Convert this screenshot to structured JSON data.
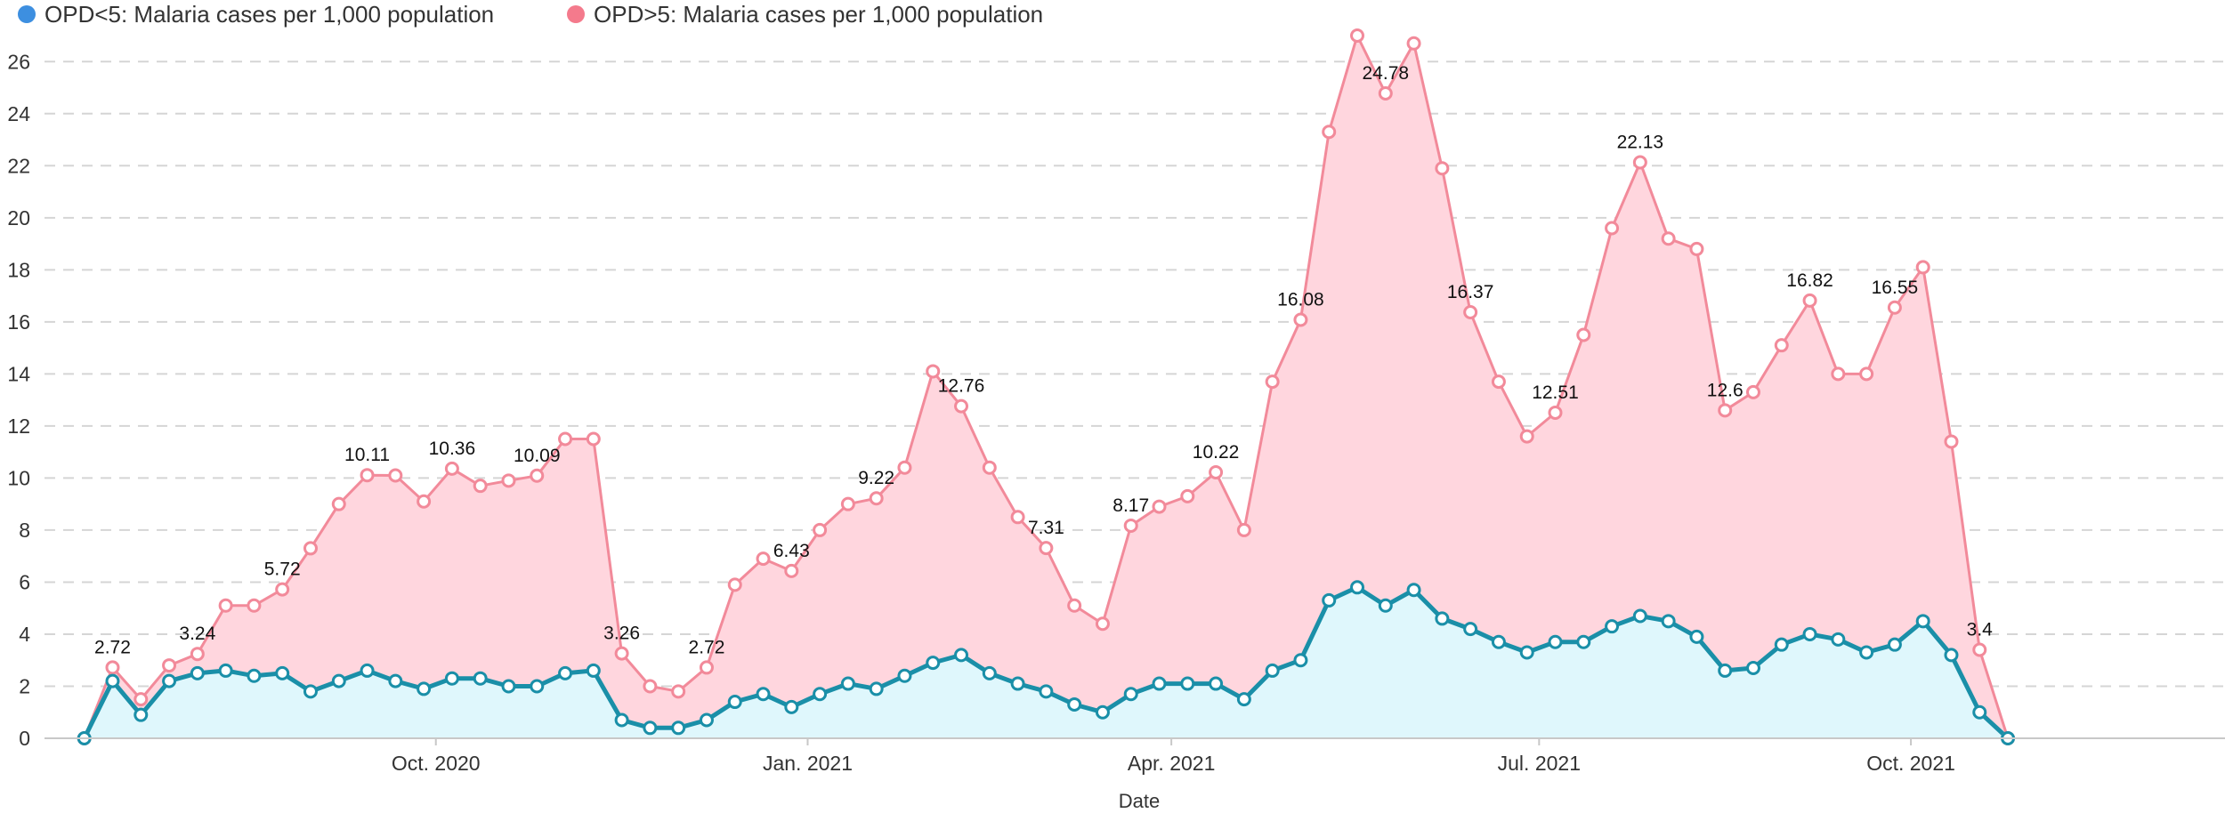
{
  "chart_data": {
    "type": "area",
    "xlabel": "Date",
    "ylabel": "",
    "ylim": [
      0,
      27
    ],
    "y_ticks": [
      0,
      2,
      4,
      6,
      8,
      10,
      12,
      14,
      16,
      18,
      20,
      22,
      24,
      26
    ],
    "grid": "horizontal dashed",
    "legend_position": "top-left",
    "x_range": [
      "2020-07-01",
      "2021-12-12"
    ],
    "x_ticks": [
      {
        "label": "Oct. 2020",
        "date": "2020-10-01"
      },
      {
        "label": "Jan. 2021",
        "date": "2021-01-01"
      },
      {
        "label": "Apr. 2021",
        "date": "2021-04-01"
      },
      {
        "label": "Jul. 2021",
        "date": "2021-07-01"
      },
      {
        "label": "Oct. 2021",
        "date": "2021-10-01"
      }
    ],
    "series": [
      {
        "name": "OPD<5: Malaria cases per 1,000 population",
        "legend_color": "#3d8fe0",
        "line_color": "#1a8fa8",
        "fill_color": "#dff7fc",
        "points": [
          [
            "2020-07-06",
            0
          ],
          [
            "2020-07-13",
            2.2
          ],
          [
            "2020-07-20",
            0.9
          ],
          [
            "2020-07-27",
            2.2
          ],
          [
            "2020-08-03",
            2.5
          ],
          [
            "2020-08-10",
            2.6
          ],
          [
            "2020-08-17",
            2.4
          ],
          [
            "2020-08-24",
            2.5
          ],
          [
            "2020-08-31",
            1.8
          ],
          [
            "2020-09-07",
            2.2
          ],
          [
            "2020-09-14",
            2.6
          ],
          [
            "2020-09-21",
            2.2
          ],
          [
            "2020-09-28",
            1.9
          ],
          [
            "2020-10-05",
            2.3
          ],
          [
            "2020-10-12",
            2.3
          ],
          [
            "2020-10-19",
            2.0
          ],
          [
            "2020-10-26",
            2.0
          ],
          [
            "2020-11-02",
            2.5
          ],
          [
            "2020-11-09",
            2.6
          ],
          [
            "2020-11-16",
            0.7
          ],
          [
            "2020-11-23",
            0.4
          ],
          [
            "2020-11-30",
            0.4
          ],
          [
            "2020-12-07",
            0.7
          ],
          [
            "2020-12-14",
            1.4
          ],
          [
            "2020-12-21",
            1.7
          ],
          [
            "2020-12-28",
            1.2
          ],
          [
            "2021-01-04",
            1.7
          ],
          [
            "2021-01-11",
            2.1
          ],
          [
            "2021-01-18",
            1.9
          ],
          [
            "2021-01-25",
            2.4
          ],
          [
            "2021-02-01",
            2.9
          ],
          [
            "2021-02-08",
            3.2
          ],
          [
            "2021-02-15",
            2.5
          ],
          [
            "2021-02-22",
            2.1
          ],
          [
            "2021-03-01",
            1.8
          ],
          [
            "2021-03-08",
            1.3
          ],
          [
            "2021-03-15",
            1.0
          ],
          [
            "2021-03-22",
            1.7
          ],
          [
            "2021-03-29",
            2.1
          ],
          [
            "2021-04-05",
            2.1
          ],
          [
            "2021-04-12",
            2.1
          ],
          [
            "2021-04-19",
            1.5
          ],
          [
            "2021-04-26",
            2.6
          ],
          [
            "2021-05-03",
            3.0
          ],
          [
            "2021-05-10",
            5.3
          ],
          [
            "2021-05-17",
            5.8
          ],
          [
            "2021-05-24",
            5.1
          ],
          [
            "2021-05-31",
            5.7
          ],
          [
            "2021-06-07",
            4.6
          ],
          [
            "2021-06-14",
            4.2
          ],
          [
            "2021-06-21",
            3.7
          ],
          [
            "2021-06-28",
            3.3
          ],
          [
            "2021-07-05",
            3.7
          ],
          [
            "2021-07-12",
            3.7
          ],
          [
            "2021-07-19",
            4.3
          ],
          [
            "2021-07-26",
            4.7
          ],
          [
            "2021-08-02",
            4.5
          ],
          [
            "2021-08-09",
            3.9
          ],
          [
            "2021-08-16",
            2.6
          ],
          [
            "2021-08-23",
            2.7
          ],
          [
            "2021-08-30",
            3.6
          ],
          [
            "2021-09-06",
            4.0
          ],
          [
            "2021-09-13",
            3.8
          ],
          [
            "2021-09-20",
            3.3
          ],
          [
            "2021-09-27",
            3.6
          ],
          [
            "2021-10-04",
            4.5
          ],
          [
            "2021-10-11",
            3.2
          ],
          [
            "2021-10-18",
            1.0
          ],
          [
            "2021-10-25",
            0
          ]
        ],
        "data_labels": []
      },
      {
        "name": "OPD>5: Malaria cases per 1,000 population",
        "legend_color": "#f47a8c",
        "line_color": "#f28a9a",
        "fill_color": "#ffd6de",
        "points": [
          [
            "2020-07-06",
            0
          ],
          [
            "2020-07-13",
            2.72
          ],
          [
            "2020-07-20",
            1.5
          ],
          [
            "2020-07-27",
            2.8
          ],
          [
            "2020-08-03",
            3.24
          ],
          [
            "2020-08-10",
            5.1
          ],
          [
            "2020-08-17",
            5.1
          ],
          [
            "2020-08-24",
            5.72
          ],
          [
            "2020-08-31",
            7.3
          ],
          [
            "2020-09-07",
            9.0
          ],
          [
            "2020-09-14",
            10.11
          ],
          [
            "2020-09-21",
            10.1
          ],
          [
            "2020-09-28",
            9.1
          ],
          [
            "2020-10-05",
            10.36
          ],
          [
            "2020-10-12",
            9.7
          ],
          [
            "2020-10-19",
            9.9
          ],
          [
            "2020-10-26",
            10.09
          ],
          [
            "2020-11-02",
            11.5
          ],
          [
            "2020-11-09",
            11.5
          ],
          [
            "2020-11-16",
            3.26
          ],
          [
            "2020-11-23",
            2.0
          ],
          [
            "2020-11-30",
            1.8
          ],
          [
            "2020-12-07",
            2.72
          ],
          [
            "2020-12-14",
            5.9
          ],
          [
            "2020-12-21",
            6.9
          ],
          [
            "2020-12-28",
            6.43
          ],
          [
            "2021-01-04",
            8.0
          ],
          [
            "2021-01-11",
            9.0
          ],
          [
            "2021-01-18",
            9.22
          ],
          [
            "2021-01-25",
            10.4
          ],
          [
            "2021-02-01",
            14.1
          ],
          [
            "2021-02-08",
            12.76
          ],
          [
            "2021-02-15",
            10.4
          ],
          [
            "2021-02-22",
            8.5
          ],
          [
            "2021-03-01",
            7.31
          ],
          [
            "2021-03-08",
            5.1
          ],
          [
            "2021-03-15",
            4.4
          ],
          [
            "2021-03-22",
            8.17
          ],
          [
            "2021-03-29",
            8.9
          ],
          [
            "2021-04-05",
            9.3
          ],
          [
            "2021-04-12",
            10.22
          ],
          [
            "2021-04-19",
            8.0
          ],
          [
            "2021-04-26",
            13.7
          ],
          [
            "2021-05-03",
            16.08
          ],
          [
            "2021-05-10",
            23.3
          ],
          [
            "2021-05-17",
            27.0
          ],
          [
            "2021-05-24",
            24.78
          ],
          [
            "2021-05-31",
            26.7
          ],
          [
            "2021-06-07",
            21.9
          ],
          [
            "2021-06-14",
            16.37
          ],
          [
            "2021-06-21",
            13.7
          ],
          [
            "2021-06-28",
            11.6
          ],
          [
            "2021-07-05",
            12.51
          ],
          [
            "2021-07-12",
            15.5
          ],
          [
            "2021-07-19",
            19.6
          ],
          [
            "2021-07-26",
            22.13
          ],
          [
            "2021-08-02",
            19.2
          ],
          [
            "2021-08-09",
            18.8
          ],
          [
            "2021-08-16",
            12.6
          ],
          [
            "2021-08-23",
            13.3
          ],
          [
            "2021-08-30",
            15.1
          ],
          [
            "2021-09-06",
            16.82
          ],
          [
            "2021-09-13",
            14.0
          ],
          [
            "2021-09-20",
            14.0
          ],
          [
            "2021-09-27",
            16.55
          ],
          [
            "2021-10-04",
            18.1
          ],
          [
            "2021-10-11",
            11.4
          ],
          [
            "2021-10-18",
            3.4
          ],
          [
            "2021-10-25",
            0
          ]
        ],
        "data_labels": [
          {
            "date": "2020-07-13",
            "value": 2.72,
            "text": "2.72"
          },
          {
            "date": "2020-08-03",
            "value": 3.24,
            "text": "3.24"
          },
          {
            "date": "2020-08-24",
            "value": 5.72,
            "text": "5.72"
          },
          {
            "date": "2020-09-14",
            "value": 10.11,
            "text": "10.11"
          },
          {
            "date": "2020-10-05",
            "value": 10.36,
            "text": "10.36"
          },
          {
            "date": "2020-10-26",
            "value": 10.09,
            "text": "10.09"
          },
          {
            "date": "2020-11-16",
            "value": 3.26,
            "text": "3.26"
          },
          {
            "date": "2020-12-07",
            "value": 2.72,
            "text": "2.72"
          },
          {
            "date": "2020-12-28",
            "value": 6.43,
            "text": "6.43"
          },
          {
            "date": "2021-01-18",
            "value": 9.22,
            "text": "9.22"
          },
          {
            "date": "2021-02-08",
            "value": 12.76,
            "text": "12.76"
          },
          {
            "date": "2021-03-01",
            "value": 7.31,
            "text": "7.31"
          },
          {
            "date": "2021-03-22",
            "value": 8.17,
            "text": "8.17"
          },
          {
            "date": "2021-04-12",
            "value": 10.22,
            "text": "10.22"
          },
          {
            "date": "2021-05-03",
            "value": 16.08,
            "text": "16.08"
          },
          {
            "date": "2021-05-24",
            "value": 24.78,
            "text": "24.78"
          },
          {
            "date": "2021-06-14",
            "value": 16.37,
            "text": "16.37"
          },
          {
            "date": "2021-07-05",
            "value": 12.51,
            "text": "12.51"
          },
          {
            "date": "2021-07-26",
            "value": 22.13,
            "text": "22.13"
          },
          {
            "date": "2021-08-16",
            "value": 12.6,
            "text": "12.6"
          },
          {
            "date": "2021-09-06",
            "value": 16.82,
            "text": "16.82"
          },
          {
            "date": "2021-09-27",
            "value": 16.55,
            "text": "16.55"
          },
          {
            "date": "2021-10-18",
            "value": 3.4,
            "text": "3.4"
          }
        ]
      }
    ]
  }
}
